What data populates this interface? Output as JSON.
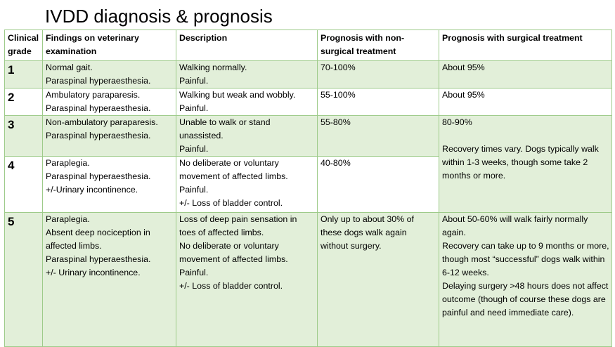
{
  "title": "IVDD diagnosis & prognosis",
  "headers": {
    "grade": "Clinical grade",
    "findings": "Findings on veterinary examination",
    "description": "Description",
    "nonsurgical": "Prognosis with non-surgical treatment",
    "surgical": "Prognosis with surgical treatment"
  },
  "rows": [
    {
      "grade": "1",
      "findings": [
        "Normal gait.",
        "Paraspinal hyperaesthesia."
      ],
      "description": [
        "Walking normally.",
        "Painful."
      ],
      "nonsurgical": "70-100%",
      "surgical": "About 95%"
    },
    {
      "grade": "2",
      "findings": [
        "Ambulatory paraparesis.",
        "Paraspinal hyperaesthesia."
      ],
      "description": [
        "Walking but weak and wobbly.",
        "Painful."
      ],
      "nonsurgical": "55-100%",
      "surgical": "About 95%"
    },
    {
      "grade": "3",
      "findings": [
        "Non-ambulatory paraparesis.",
        "Paraspinal hyperaesthesia."
      ],
      "description": [
        "Unable to walk or stand",
        "unassisted.",
        "Painful."
      ],
      "nonsurgical": "55-80%"
    },
    {
      "grade": "4",
      "findings": [
        "Paraplegia.",
        "Paraspinal hyperaesthesia.",
        "+/-Urinary incontinence."
      ],
      "description": [
        "No deliberate or voluntary",
        "movement of affected limbs.",
        "Painful.",
        "+/- Loss of bladder control."
      ],
      "nonsurgical": "40-80%"
    },
    {
      "grade": "5",
      "findings": [
        "Paraplegia.",
        "Absent deep nociception in",
        "affected limbs.",
        "Paraspinal hyperaesthesia.",
        "+/- Urinary incontinence."
      ],
      "description": [
        "Loss of deep pain sensation in",
        "toes of affected limbs.",
        "No deliberate or voluntary",
        "movement of affected limbs.",
        "Painful.",
        "+/- Loss of bladder control."
      ],
      "nonsurgical": "Only up to about 30% of these dogs walk again without surgery.",
      "surgical": [
        "About 50-60% will walk fairly normally again.",
        "Recovery can take up to 9 months or more, though most “successful” dogs walk within 6-12 weeks.",
        "Delaying surgery >48 hours does not affect outcome (though of course these dogs are painful and need immediate care)."
      ]
    }
  ],
  "merged_surgical_3_4": {
    "value": "80-90%",
    "note": "Recovery times vary. Dogs typically walk within 1-3 weeks, though some take 2 months or more."
  }
}
